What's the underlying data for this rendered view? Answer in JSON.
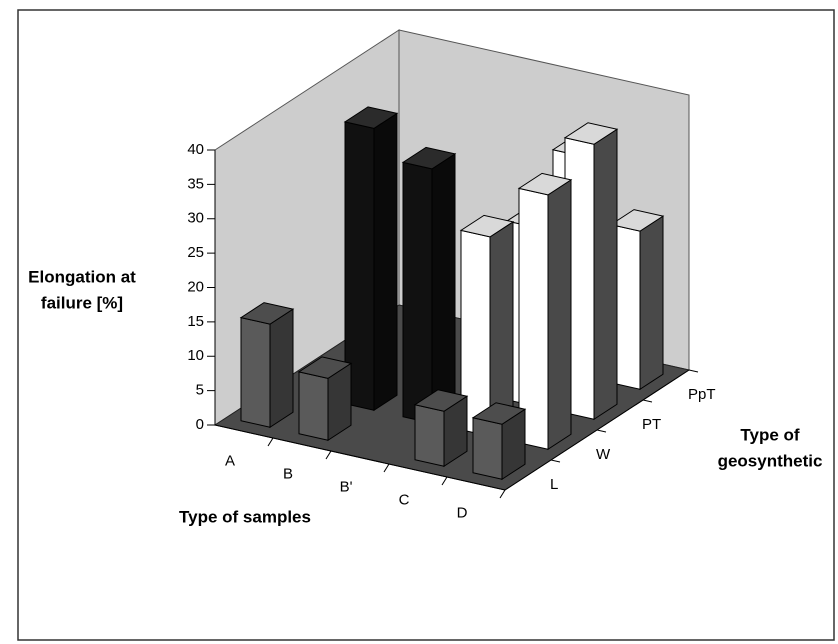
{
  "chart_data": {
    "type": "bar3d",
    "ylabel": [
      "Elongation at",
      "failure [%]"
    ],
    "xlabel": "Type of samples",
    "zlabel": [
      "Type of",
      "geosynthetic"
    ],
    "categories": [
      "A",
      "B",
      "B'",
      "C",
      "D"
    ],
    "series": [
      {
        "name": "L",
        "values": [
          15,
          9,
          null,
          8,
          8
        ],
        "colors": [
          "#5a5a5a",
          "#5a5a5a",
          null,
          "#5a5a5a",
          "#5a5a5a"
        ]
      },
      {
        "name": "W",
        "values": [
          null,
          41,
          37,
          29,
          37
        ],
        "colors": [
          null,
          "#111111",
          "#111111",
          "#ffffff",
          "#ffffff"
        ]
      },
      {
        "name": "PT",
        "values": [
          null,
          null,
          null,
          26,
          40
        ],
        "colors": [
          null,
          null,
          null,
          "#ffffff",
          "#ffffff"
        ]
      },
      {
        "name": "PpT",
        "values": [
          null,
          null,
          null,
          32,
          23
        ],
        "colors": [
          null,
          null,
          null,
          "#ffffff",
          "#ffffff"
        ]
      }
    ],
    "ylim": [
      0,
      40
    ],
    "yticks": [
      0,
      5,
      10,
      15,
      20,
      25,
      30,
      35,
      40
    ],
    "floor_color": "#4a4a4a",
    "wall_color": "#cdcdcd"
  }
}
